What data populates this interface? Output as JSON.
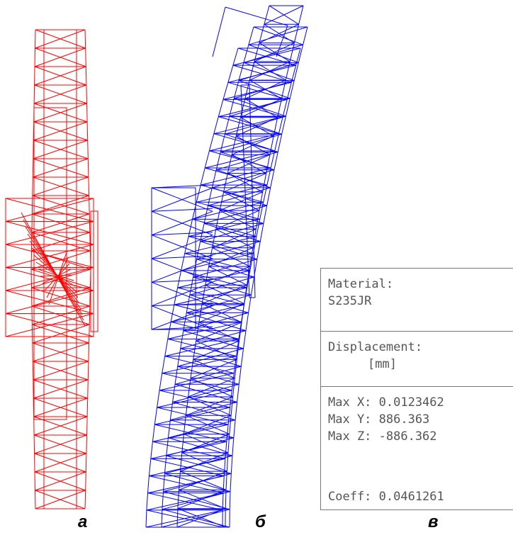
{
  "colors": {
    "original_frame": "#ff0000",
    "deformed_frame": "#0000ff",
    "panel_text": "#555555",
    "panel_border": "#777777",
    "caption": "#000000"
  },
  "panel": {
    "material_label": "Material:",
    "material_value": "S235JR",
    "displacement_label": "Displacement:",
    "displacement_unit": "[mm]",
    "max_x": "Max X: 0.0123462",
    "max_y": "Max Y: 886.363",
    "max_z": "Max Z: -886.362",
    "coeff": "Coeff:  0.0461261"
  },
  "captions": {
    "a": "а",
    "b": "б",
    "c": "в"
  }
}
